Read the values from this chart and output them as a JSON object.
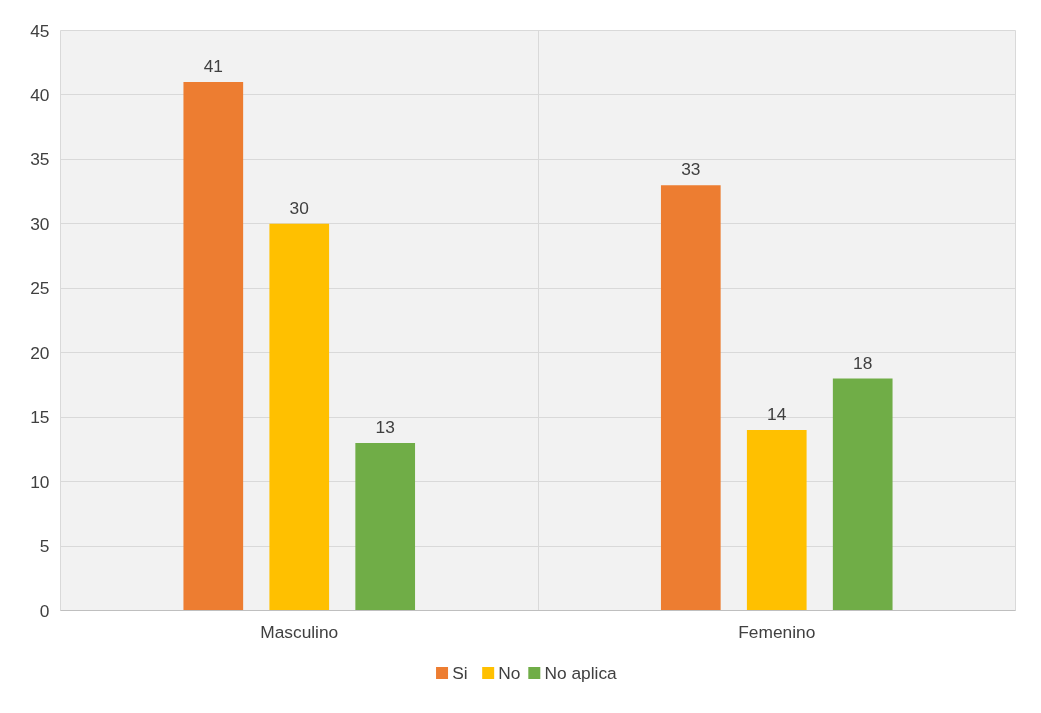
{
  "chart_data": {
    "type": "bar",
    "categories": [
      "Masculino",
      "Femenino"
    ],
    "series": [
      {
        "name": "Si",
        "color": "#ed7d31",
        "values": [
          41,
          33
        ]
      },
      {
        "name": "No",
        "color": "#ffc000",
        "values": [
          30,
          14
        ]
      },
      {
        "name": "No aplica",
        "color": "#70ad47",
        "values": [
          13,
          18
        ]
      }
    ],
    "ylim": [
      0,
      45
    ],
    "yticks": [
      0,
      5,
      10,
      15,
      20,
      25,
      30,
      35,
      40,
      45
    ],
    "grid": true,
    "legend": "bottom",
    "data_labels": true
  }
}
